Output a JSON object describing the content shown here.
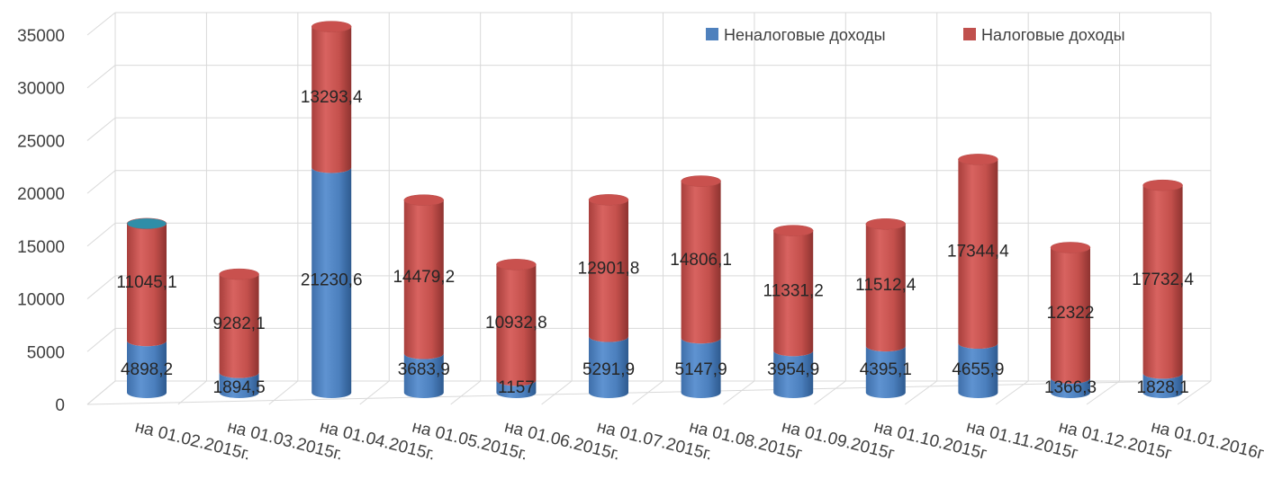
{
  "chart_data": {
    "type": "bar",
    "stacked": true,
    "style": "3d-cylinder",
    "categories": [
      "на 01.02.2015г.",
      "на 01.03.2015г.",
      "на 01.04.2015г.",
      "на 01.05.2015г.",
      "на 01.06.2015г.",
      "на 01.07.2015г.",
      "на 01.08.2015г",
      "на 01.09.2015г",
      "на 01.10.2015г",
      "на 01.11.2015г",
      "на 01.12.2015г",
      "на 01.01.2016г"
    ],
    "series": [
      {
        "name": "Неналоговые доходы",
        "color": "#4F81BD",
        "values": [
          4898.2,
          1894.5,
          21230.6,
          3683.9,
          1157,
          5291.9,
          5147.9,
          3954.9,
          4395.1,
          4655.9,
          1366.3,
          1828.1
        ],
        "labels": [
          "4898,2",
          "1894,5",
          "21230,6",
          "3683,9",
          "1157",
          "5291,9",
          "5147,9",
          "3954,9",
          "4395,1",
          "4655,9",
          "1366,3",
          "1828,1"
        ]
      },
      {
        "name": "Налоговые доходы",
        "color": "#C0504D",
        "values": [
          11045.1,
          9282.1,
          13293.4,
          14479.2,
          10932.8,
          12901.8,
          14806.1,
          11331.2,
          11512.4,
          17344.4,
          12322,
          17732.4
        ],
        "labels": [
          "11045,1",
          "9282,1",
          "13293,4",
          "14479,2",
          "10932,8",
          "12901,8",
          "14806,1",
          "11331,2",
          "11512,4",
          "17344,4",
          "12322",
          "17732,4"
        ]
      }
    ],
    "ylim": [
      0,
      35000
    ],
    "yticks": [
      0,
      5000,
      10000,
      15000,
      20000,
      25000,
      30000,
      35000
    ],
    "grid": true,
    "legend": "top-right",
    "title": "",
    "xlabel": "",
    "ylabel": ""
  }
}
